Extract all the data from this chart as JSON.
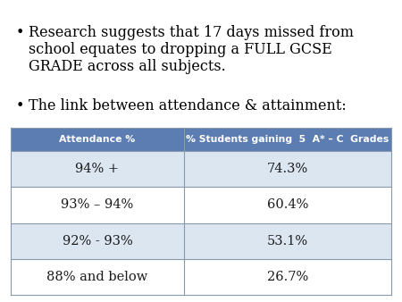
{
  "bullet1_line1": "Research suggests that 17 days missed from",
  "bullet1_line2": "school equates to dropping a FULL GCSE",
  "bullet1_line3": "GRADE across all subjects.",
  "bullet2": "The link between attendance & attainment:",
  "header": [
    "Attendance %",
    "% Students gaining  5  A* – C  Grades"
  ],
  "rows": [
    [
      "94% +",
      "74.3%"
    ],
    [
      "93% – 94%",
      "60.4%"
    ],
    [
      "92% - 93%",
      "53.1%"
    ],
    [
      "88% and below",
      "26.7%"
    ]
  ],
  "header_bg": "#5b7db1",
  "header_text_color": "#ffffff",
  "row_bg_odd": "#dce6f1",
  "row_bg_even": "#ffffff",
  "body_text_color": "#1a1a1a",
  "bg_color": "#ffffff",
  "bullet_font_size": 11.5,
  "table_font_size": 10.5,
  "header_font_size": 7.8
}
